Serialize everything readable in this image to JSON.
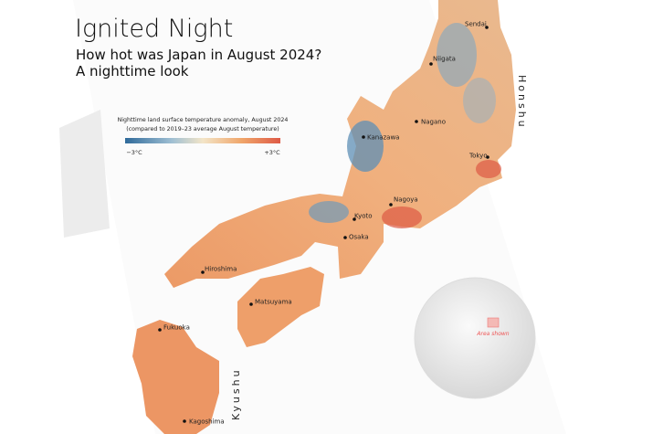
{
  "header": {
    "title": "Ignited Night",
    "subtitle": [
      "How hot was Japan in August 2024?",
      "A nighttime look"
    ]
  },
  "legend": {
    "title": [
      "Nighttime land surface temperature anomaly, August 2024",
      "(compared to 2019–23 average August temperature)"
    ],
    "min_label": "−3°C",
    "max_label": "+3°C"
  },
  "cities": [
    "Sendai",
    "Niigata",
    "Nagano",
    "Kanazawa",
    "Tokyo",
    "Nagoya",
    "Kyoto",
    "Osaka",
    "Hiroshima",
    "Matsuyama",
    "Fukuoka",
    "Kagoshima"
  ],
  "regions": [
    "Honshu",
    "Kyushu"
  ],
  "inset": {
    "label": "Area shown"
  }
}
